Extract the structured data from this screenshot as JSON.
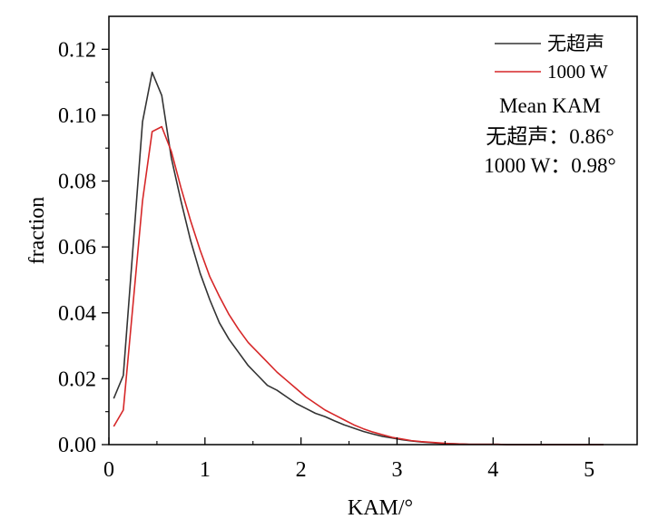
{
  "chart_data": {
    "type": "line",
    "xlabel": "KAM/°",
    "ylabel": "fraction",
    "xlim": [
      0,
      5.5
    ],
    "ylim": [
      0,
      0.13
    ],
    "x_ticks": [
      0,
      1,
      2,
      3,
      4,
      5
    ],
    "x_tick_labels": [
      "0",
      "1",
      "2",
      "3",
      "4",
      "5"
    ],
    "y_ticks": [
      0,
      0.02,
      0.04,
      0.06,
      0.08,
      0.1,
      0.12
    ],
    "y_tick_labels": [
      "0.00",
      "0.02",
      "0.04",
      "0.06",
      "0.08",
      "0.10",
      "0.12"
    ],
    "grid": false,
    "legend_position": "top-right",
    "series": [
      {
        "name": "无超声",
        "color": "#333333",
        "x": [
          0.05,
          0.15,
          0.35,
          0.45,
          0.55,
          0.65,
          0.75,
          0.85,
          0.95,
          1.05,
          1.15,
          1.25,
          1.35,
          1.45,
          1.55,
          1.65,
          1.75,
          1.85,
          1.95,
          2.05,
          2.15,
          2.25,
          2.35,
          2.45,
          2.55,
          2.65,
          2.75,
          2.85,
          2.95,
          3.05,
          3.15,
          3.25,
          3.35,
          3.45,
          3.55,
          3.65,
          3.75,
          3.85,
          3.95,
          4.05,
          4.15,
          4.25,
          4.35,
          4.45,
          4.55,
          4.65,
          4.75,
          4.85,
          4.95,
          5.05,
          5.15
        ],
        "y": [
          0.014,
          0.021,
          0.098,
          0.113,
          0.106,
          0.087,
          0.074,
          0.062,
          0.052,
          0.044,
          0.037,
          0.032,
          0.028,
          0.024,
          0.021,
          0.018,
          0.0165,
          0.0145,
          0.0125,
          0.011,
          0.0095,
          0.0085,
          0.0072,
          0.006,
          0.005,
          0.004,
          0.0032,
          0.0025,
          0.002,
          0.0015,
          0.0011,
          0.0008,
          0.0006,
          0.0004,
          0.0003,
          0.0002,
          0.0001,
          0.0001,
          0.0001,
          0.0001,
          0.0,
          0.0,
          0.0,
          0.0,
          0.0,
          0.0,
          0.0,
          0.0,
          0.0,
          0.0,
          0.0
        ]
      },
      {
        "name": "1000 W",
        "color": "#d62728",
        "x": [
          0.05,
          0.15,
          0.35,
          0.45,
          0.55,
          0.65,
          0.75,
          0.85,
          0.95,
          1.05,
          1.15,
          1.25,
          1.35,
          1.45,
          1.55,
          1.65,
          1.75,
          1.85,
          1.95,
          2.05,
          2.15,
          2.25,
          2.35,
          2.45,
          2.55,
          2.65,
          2.75,
          2.85,
          2.95,
          3.05,
          3.15,
          3.25,
          3.35,
          3.45,
          3.55,
          3.65,
          3.75,
          3.85,
          3.95,
          4.05,
          4.15,
          4.25,
          4.35,
          4.45,
          4.55,
          4.65,
          4.75,
          4.85,
          4.95,
          5.05,
          5.15
        ],
        "y": [
          0.0055,
          0.0105,
          0.074,
          0.095,
          0.0965,
          0.089,
          0.078,
          0.068,
          0.059,
          0.051,
          0.045,
          0.0395,
          0.035,
          0.031,
          0.028,
          0.025,
          0.022,
          0.0195,
          0.017,
          0.0145,
          0.0125,
          0.0105,
          0.009,
          0.0075,
          0.006,
          0.0048,
          0.0038,
          0.003,
          0.0022,
          0.0017,
          0.0012,
          0.0009,
          0.0007,
          0.0005,
          0.0003,
          0.0002,
          0.0001,
          0.0001,
          0.0001,
          0.0001,
          0.0,
          0.0,
          0.0,
          0.0,
          0.0,
          0.0,
          0.0,
          0.0,
          0.0,
          0.0,
          0.0
        ]
      }
    ],
    "annotations": {
      "title": "Mean  KAM",
      "line1": "无超声：0.86°",
      "line2": "1000 W：0.98°"
    }
  }
}
